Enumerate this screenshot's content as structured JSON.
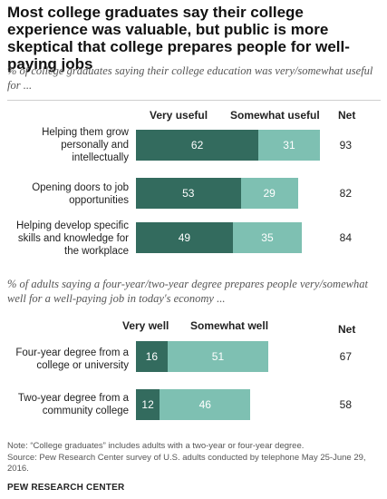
{
  "title": "Most college graduates say their college experience was valuable, but public is more skeptical that college prepares people for well-paying jobs",
  "colors": {
    "dark": "#336b5e",
    "light": "#7ec0b2"
  },
  "chart_data": [
    {
      "type": "bar",
      "subtitle": "% of college graduates saying their college education was very/somewhat useful for ...",
      "legend": [
        "Very useful",
        "Somewhat useful"
      ],
      "net_label": "Net",
      "categories": [
        "Helping them grow personally and intellectually",
        "Opening doors to job opportunities",
        "Helping develop specific skills and knowledge for the workplace"
      ],
      "series": [
        {
          "name": "Very useful",
          "values": [
            62,
            53,
            49
          ]
        },
        {
          "name": "Somewhat useful",
          "values": [
            31,
            29,
            35
          ]
        }
      ],
      "net": [
        93,
        82,
        84
      ]
    },
    {
      "type": "bar",
      "subtitle": "% of adults saying a four-year/two-year degree prepares people very/somewhat well for a well-paying job in today's economy ...",
      "legend": [
        "Very well",
        "Somewhat well"
      ],
      "net_label": "Net",
      "categories": [
        "Four-year degree from a college or university",
        "Two-year degree from a community college"
      ],
      "series": [
        {
          "name": "Very well",
          "values": [
            16,
            12
          ]
        },
        {
          "name": "Somewhat well",
          "values": [
            51,
            46
          ]
        }
      ],
      "net": [
        67,
        58
      ]
    }
  ],
  "note": "Note: “College graduates” includes adults with a two-year or four-year degree.",
  "source": "Source: Pew Research Center survey of U.S. adults conducted by telephone May 25-June 29, 2016.",
  "brand": "PEW RESEARCH CENTER"
}
